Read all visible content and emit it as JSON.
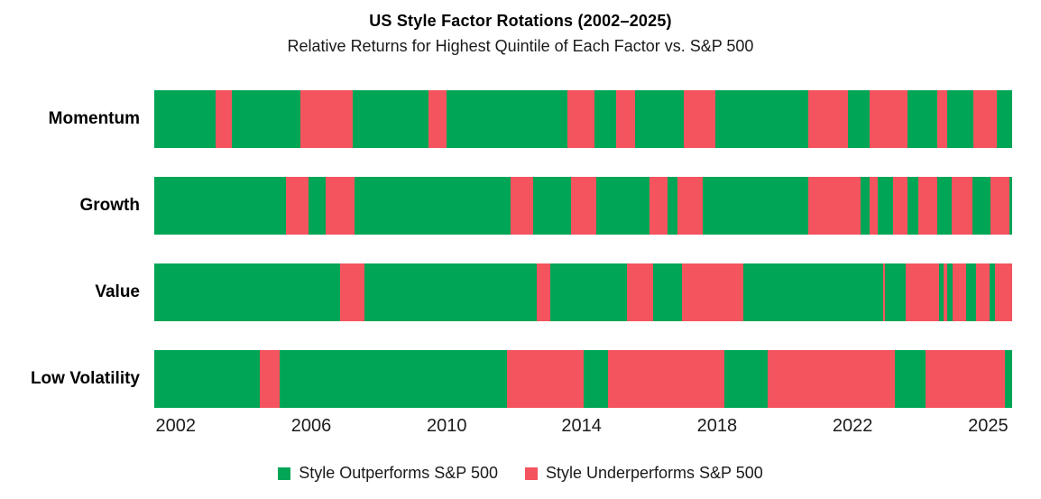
{
  "chart_data": {
    "type": "bar",
    "variant": "horizontal-timeline-rotation",
    "title": "US Style Factor Rotations (2002–2025)",
    "subtitle": "Relative Returns for Highest Quintile of Each Factor vs. S&P 500",
    "x_domain": [
      2002.0,
      2025.75
    ],
    "grid": false,
    "legend_position": "bottom-center",
    "colors": {
      "out": "#00A556",
      "under": "#F4545E"
    },
    "legend": [
      {
        "key": "out",
        "label": "Style Outperforms S&P 500",
        "color": "#00A556"
      },
      {
        "key": "under",
        "label": "Style Underperforms S&P 500",
        "color": "#F4545E"
      }
    ],
    "x_ticks": [
      {
        "label": "2002",
        "pos_pct": 2.5
      },
      {
        "label": "2006",
        "pos_pct": 18.3
      },
      {
        "label": "2010",
        "pos_pct": 34.1
      },
      {
        "label": "2014",
        "pos_pct": 49.8
      },
      {
        "label": "2018",
        "pos_pct": 65.6
      },
      {
        "label": "2022",
        "pos_pct": 81.4
      },
      {
        "label": "2025",
        "pos_pct": 97.2
      }
    ],
    "series": [
      {
        "name": "Momentum",
        "segments": [
          {
            "status": "out",
            "start": 2002.0,
            "end": 2003.7
          },
          {
            "status": "under",
            "start": 2003.7,
            "end": 2004.15
          },
          {
            "status": "out",
            "start": 2004.15,
            "end": 2006.05
          },
          {
            "status": "under",
            "start": 2006.05,
            "end": 2007.49
          },
          {
            "status": "out",
            "start": 2007.49,
            "end": 2009.59
          },
          {
            "status": "under",
            "start": 2009.59,
            "end": 2010.09
          },
          {
            "status": "out",
            "start": 2010.09,
            "end": 2013.44
          },
          {
            "status": "under",
            "start": 2013.44,
            "end": 2014.19
          },
          {
            "status": "out",
            "start": 2014.19,
            "end": 2014.79
          },
          {
            "status": "under",
            "start": 2014.79,
            "end": 2015.31
          },
          {
            "status": "out",
            "start": 2015.31,
            "end": 2016.66
          },
          {
            "status": "under",
            "start": 2016.66,
            "end": 2017.53
          },
          {
            "status": "out",
            "start": 2017.53,
            "end": 2020.11
          },
          {
            "status": "under",
            "start": 2020.11,
            "end": 2021.2
          },
          {
            "status": "out",
            "start": 2021.2,
            "end": 2021.8
          },
          {
            "status": "under",
            "start": 2021.8,
            "end": 2022.85
          },
          {
            "status": "out",
            "start": 2022.85,
            "end": 2023.68
          },
          {
            "status": "under",
            "start": 2023.68,
            "end": 2023.95
          },
          {
            "status": "out",
            "start": 2023.95,
            "end": 2024.68
          },
          {
            "status": "under",
            "start": 2024.68,
            "end": 2025.33
          },
          {
            "status": "out",
            "start": 2025.33,
            "end": 2025.75
          }
        ]
      },
      {
        "name": "Growth",
        "segments": [
          {
            "status": "out",
            "start": 2002.0,
            "end": 2005.65
          },
          {
            "status": "under",
            "start": 2005.65,
            "end": 2006.27
          },
          {
            "status": "out",
            "start": 2006.27,
            "end": 2006.74
          },
          {
            "status": "under",
            "start": 2006.74,
            "end": 2007.54
          },
          {
            "status": "out",
            "start": 2007.54,
            "end": 2011.86
          },
          {
            "status": "under",
            "start": 2011.86,
            "end": 2012.49
          },
          {
            "status": "out",
            "start": 2012.49,
            "end": 2013.54
          },
          {
            "status": "under",
            "start": 2013.54,
            "end": 2014.24
          },
          {
            "status": "out",
            "start": 2014.24,
            "end": 2015.71
          },
          {
            "status": "under",
            "start": 2015.71,
            "end": 2016.21
          },
          {
            "status": "out",
            "start": 2016.21,
            "end": 2016.48
          },
          {
            "status": "under",
            "start": 2016.48,
            "end": 2017.18
          },
          {
            "status": "out",
            "start": 2017.18,
            "end": 2020.11
          },
          {
            "status": "under",
            "start": 2020.11,
            "end": 2021.55
          },
          {
            "status": "out",
            "start": 2021.55,
            "end": 2021.8
          },
          {
            "status": "under",
            "start": 2021.8,
            "end": 2022.03
          },
          {
            "status": "out",
            "start": 2022.03,
            "end": 2022.45
          },
          {
            "status": "under",
            "start": 2022.45,
            "end": 2022.85
          },
          {
            "status": "out",
            "start": 2022.85,
            "end": 2023.15
          },
          {
            "status": "under",
            "start": 2023.15,
            "end": 2023.68
          },
          {
            "status": "out",
            "start": 2023.68,
            "end": 2024.08
          },
          {
            "status": "under",
            "start": 2024.08,
            "end": 2024.65
          },
          {
            "status": "out",
            "start": 2024.65,
            "end": 2025.15
          },
          {
            "status": "under",
            "start": 2025.15,
            "end": 2025.67
          },
          {
            "status": "out",
            "start": 2025.67,
            "end": 2025.75
          }
        ]
      },
      {
        "name": "Value",
        "segments": [
          {
            "status": "out",
            "start": 2002.0,
            "end": 2007.14
          },
          {
            "status": "under",
            "start": 2007.14,
            "end": 2007.82
          },
          {
            "status": "out",
            "start": 2007.82,
            "end": 2012.59
          },
          {
            "status": "under",
            "start": 2012.59,
            "end": 2012.96
          },
          {
            "status": "out",
            "start": 2012.96,
            "end": 2015.09
          },
          {
            "status": "under",
            "start": 2015.09,
            "end": 2015.81
          },
          {
            "status": "out",
            "start": 2015.81,
            "end": 2016.61
          },
          {
            "status": "under",
            "start": 2016.61,
            "end": 2018.31
          },
          {
            "status": "out",
            "start": 2018.31,
            "end": 2022.18
          },
          {
            "status": "under",
            "start": 2022.18,
            "end": 2022.23
          },
          {
            "status": "out",
            "start": 2022.23,
            "end": 2022.8
          },
          {
            "status": "under",
            "start": 2022.8,
            "end": 2023.73
          },
          {
            "status": "out",
            "start": 2023.73,
            "end": 2023.85
          },
          {
            "status": "under",
            "start": 2023.85,
            "end": 2023.95
          },
          {
            "status": "out",
            "start": 2023.95,
            "end": 2024.1
          },
          {
            "status": "under",
            "start": 2024.1,
            "end": 2024.48
          },
          {
            "status": "out",
            "start": 2024.48,
            "end": 2024.75
          },
          {
            "status": "under",
            "start": 2024.75,
            "end": 2025.13
          },
          {
            "status": "out",
            "start": 2025.13,
            "end": 2025.28
          },
          {
            "status": "under",
            "start": 2025.28,
            "end": 2025.75
          }
        ]
      },
      {
        "name": "Low Volatility",
        "segments": [
          {
            "status": "out",
            "start": 2002.0,
            "end": 2004.92
          },
          {
            "status": "under",
            "start": 2004.92,
            "end": 2005.47
          },
          {
            "status": "out",
            "start": 2005.47,
            "end": 2011.76
          },
          {
            "status": "under",
            "start": 2011.76,
            "end": 2013.89
          },
          {
            "status": "out",
            "start": 2013.89,
            "end": 2014.56
          },
          {
            "status": "under",
            "start": 2014.56,
            "end": 2017.78
          },
          {
            "status": "out",
            "start": 2017.78,
            "end": 2018.98
          },
          {
            "status": "under",
            "start": 2018.98,
            "end": 2022.5
          },
          {
            "status": "out",
            "start": 2022.5,
            "end": 2023.35
          },
          {
            "status": "under",
            "start": 2023.35,
            "end": 2025.55
          },
          {
            "status": "out",
            "start": 2025.55,
            "end": 2025.75
          }
        ]
      }
    ]
  }
}
